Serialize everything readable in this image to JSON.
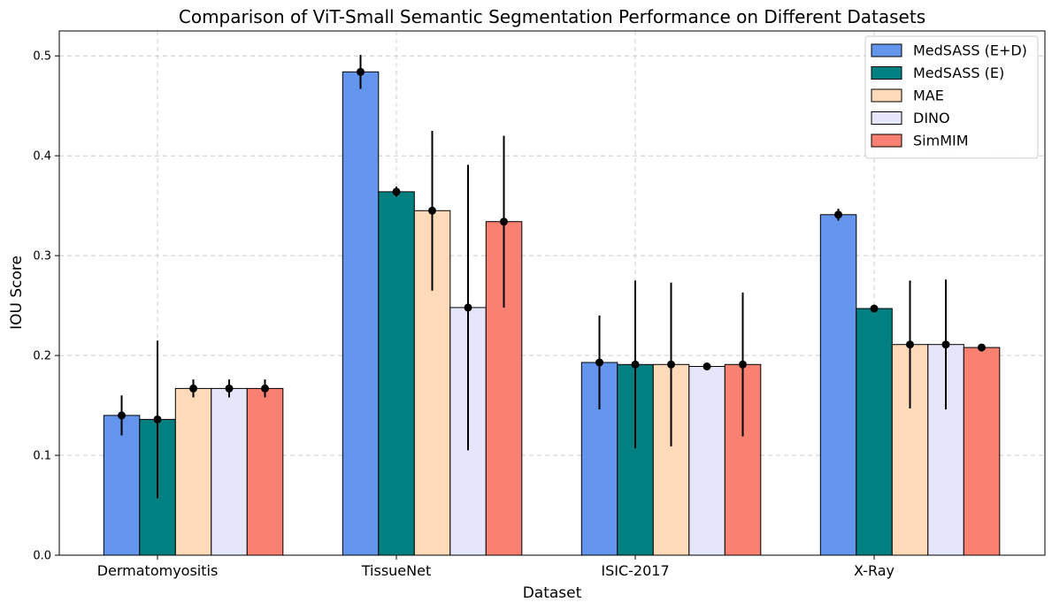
{
  "chart_data": {
    "type": "bar",
    "title": "Comparison of ViT-Small Semantic Segmentation Performance on Different Datasets",
    "xlabel": "Dataset",
    "ylabel": "IOU Score",
    "ylim": [
      0,
      0.525
    ],
    "yticks": [
      "0.0",
      "0.1",
      "0.2",
      "0.3",
      "0.4",
      "0.5"
    ],
    "grid": true,
    "legend_position": "top-right",
    "categories": [
      "Dermatomyositis",
      "TissueNet",
      "ISIC-2017",
      "X-Ray"
    ],
    "series": [
      {
        "name": "MedSASS (E+D)",
        "color": "#6495ED",
        "values": [
          0.14,
          0.484,
          0.193,
          0.341
        ],
        "errors": [
          0.02,
          0.017,
          0.047,
          0.006
        ]
      },
      {
        "name": "MedSASS (E)",
        "color": "#008080",
        "values": [
          0.136,
          0.364,
          0.191,
          0.247
        ],
        "errors": [
          0.079,
          0.005,
          0.084,
          0.002
        ]
      },
      {
        "name": "MAE",
        "color": "#FFDAB9",
        "values": [
          0.167,
          0.345,
          0.191,
          0.211
        ],
        "errors": [
          0.009,
          0.08,
          0.082,
          0.064
        ]
      },
      {
        "name": "DINO",
        "color": "#E6E6FA",
        "values": [
          0.167,
          0.248,
          0.189,
          0.211
        ],
        "errors": [
          0.009,
          0.143,
          0.001,
          0.065
        ]
      },
      {
        "name": "SimMIM",
        "color": "#FA8072",
        "values": [
          0.167,
          0.334,
          0.191,
          0.208
        ],
        "errors": [
          0.009,
          0.086,
          0.072,
          0.002
        ]
      }
    ]
  }
}
